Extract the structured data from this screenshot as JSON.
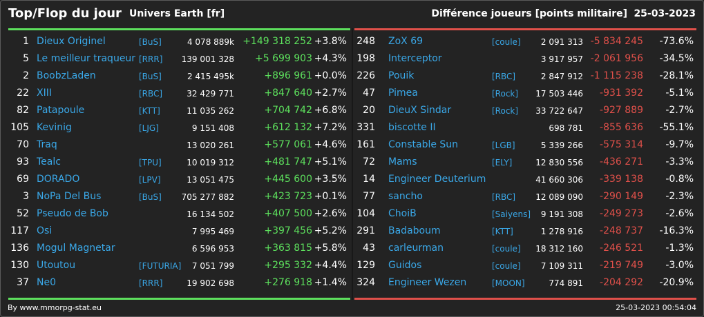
{
  "header": {
    "title": "Top/Flop du jour",
    "universe": "Univers Earth [fr]",
    "metric": "Différence joueurs [points militaire]",
    "date": "25-03-2023"
  },
  "colors": {
    "up": "#5de05d",
    "down": "#e0504a",
    "link": "#3aa8e8",
    "background": "#232323"
  },
  "top": [
    {
      "rank": "1",
      "name": "Dieux Originel",
      "tag": "[BuS]",
      "points": "4 078 889k",
      "diff": "+149 318 252",
      "pct": "+3.8%"
    },
    {
      "rank": "5",
      "name": "Le meilleur traqueur",
      "tag": "[RRR]",
      "points": "139 001 328",
      "diff": "+5 699 903",
      "pct": "+4.3%"
    },
    {
      "rank": "2",
      "name": "BoobzLaden",
      "tag": "[BuS]",
      "points": "2 415 495k",
      "diff": "+896 961",
      "pct": "+0.0%"
    },
    {
      "rank": "22",
      "name": "XIII",
      "tag": "[RBC]",
      "points": "32 429 771",
      "diff": "+847 640",
      "pct": "+2.7%"
    },
    {
      "rank": "82",
      "name": "Patapoule",
      "tag": "[KTT]",
      "points": "11 035 262",
      "diff": "+704 742",
      "pct": "+6.8%"
    },
    {
      "rank": "105",
      "name": "Kevinig",
      "tag": "[LJG]",
      "points": "9 151 408",
      "diff": "+612 132",
      "pct": "+7.2%"
    },
    {
      "rank": "70",
      "name": "Traq",
      "tag": "",
      "points": "13 020 261",
      "diff": "+577 061",
      "pct": "+4.6%"
    },
    {
      "rank": "93",
      "name": "Tealc",
      "tag": "[TPU]",
      "points": "10 019 312",
      "diff": "+481 747",
      "pct": "+5.1%"
    },
    {
      "rank": "69",
      "name": "DORADO",
      "tag": "[LPV]",
      "points": "13 051 475",
      "diff": "+445 600",
      "pct": "+3.5%"
    },
    {
      "rank": "3",
      "name": "NoPa Del Bus",
      "tag": "[BuS]",
      "points": "705 277 882",
      "diff": "+423 723",
      "pct": "+0.1%"
    },
    {
      "rank": "52",
      "name": "Pseudo de Bob",
      "tag": "",
      "points": "16 134 502",
      "diff": "+407 500",
      "pct": "+2.6%"
    },
    {
      "rank": "117",
      "name": "Osi",
      "tag": "",
      "points": "7 995 469",
      "diff": "+397 456",
      "pct": "+5.2%"
    },
    {
      "rank": "136",
      "name": "Mogul Magnetar",
      "tag": "",
      "points": "6 596 953",
      "diff": "+363 815",
      "pct": "+5.8%"
    },
    {
      "rank": "130",
      "name": "Utoutou",
      "tag": "[FUTURIA]",
      "points": "7 051 799",
      "diff": "+295 332",
      "pct": "+4.4%"
    },
    {
      "rank": "37",
      "name": "Ne0",
      "tag": "[RRR]",
      "points": "19 902 698",
      "diff": "+276 918",
      "pct": "+1.4%"
    }
  ],
  "flop": [
    {
      "rank": "248",
      "name": "ZoX 69",
      "tag": "[coule]",
      "points": "2 091 313",
      "diff": "-5 834 245",
      "pct": "-73.6%"
    },
    {
      "rank": "198",
      "name": "Interceptor",
      "tag": "",
      "points": "3 917 957",
      "diff": "-2 061 956",
      "pct": "-34.5%"
    },
    {
      "rank": "226",
      "name": "Pouik",
      "tag": "[RBC]",
      "points": "2 847 912",
      "diff": "-1 115 238",
      "pct": "-28.1%"
    },
    {
      "rank": "47",
      "name": "Pimea",
      "tag": "[Rock]",
      "points": "17 503 446",
      "diff": "-931 392",
      "pct": "-5.1%"
    },
    {
      "rank": "20",
      "name": "DieuX Sindar",
      "tag": "[Rock]",
      "points": "33 722 647",
      "diff": "-927 889",
      "pct": "-2.7%"
    },
    {
      "rank": "331",
      "name": "biscotte II",
      "tag": "",
      "points": "698 781",
      "diff": "-855 636",
      "pct": "-55.1%"
    },
    {
      "rank": "161",
      "name": "Constable Sun",
      "tag": "[LGB]",
      "points": "5 339 266",
      "diff": "-575 314",
      "pct": "-9.7%"
    },
    {
      "rank": "72",
      "name": "Mams",
      "tag": "[ELY]",
      "points": "12 830 556",
      "diff": "-436 271",
      "pct": "-3.3%"
    },
    {
      "rank": "14",
      "name": "Engineer Deuterium",
      "tag": "",
      "points": "41 660 306",
      "diff": "-339 138",
      "pct": "-0.8%"
    },
    {
      "rank": "77",
      "name": "sancho",
      "tag": "[RBC]",
      "points": "12 089 090",
      "diff": "-290 149",
      "pct": "-2.3%"
    },
    {
      "rank": "104",
      "name": "ChoiB",
      "tag": "[Saiyens]",
      "points": "9 191 308",
      "diff": "-249 273",
      "pct": "-2.6%"
    },
    {
      "rank": "291",
      "name": "Badaboum",
      "tag": "[KTT]",
      "points": "1 278 916",
      "diff": "-248 737",
      "pct": "-16.3%"
    },
    {
      "rank": "43",
      "name": "carleurman",
      "tag": "[coule]",
      "points": "18 312 160",
      "diff": "-246 521",
      "pct": "-1.3%"
    },
    {
      "rank": "129",
      "name": "Guidos",
      "tag": "[coule]",
      "points": "7 109 311",
      "diff": "-219 749",
      "pct": "-3.0%"
    },
    {
      "rank": "324",
      "name": "Engineer Wezen",
      "tag": "[MOON]",
      "points": "774 891",
      "diff": "-204 292",
      "pct": "-20.9%"
    }
  ],
  "footer": {
    "credit": "By www.mmorpg-stat.eu",
    "timestamp": "25-03-2023 00:54:04"
  }
}
